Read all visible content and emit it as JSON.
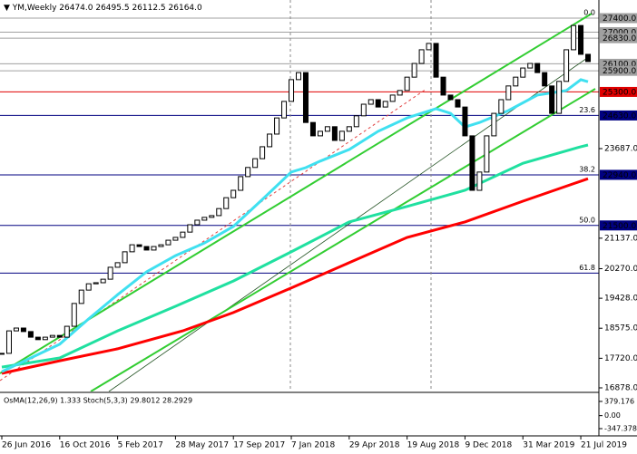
{
  "chart_data": {
    "type": "candlestick",
    "title": "YM,Weekly",
    "subtitle": "26474.0 26495.5 26112.5 26164.0",
    "values": [
      17860,
      18500,
      18580,
      18480,
      18320,
      18250,
      18320,
      18370,
      18320,
      18630,
      19280,
      19660,
      19840,
      19870,
      19970,
      20310,
      20440,
      20750,
      20950,
      20900,
      20800,
      20900,
      20950,
      21080,
      21160,
      21310,
      21520,
      21650,
      21730,
      21780,
      21980,
      22290,
      22500,
      22890,
      23150,
      23400,
      23740,
      24100,
      24560,
      25030,
      25650,
      25850,
      24430,
      24050,
      24180,
      24310,
      23920,
      24180,
      24310,
      24620,
      24950,
      25080,
      24870,
      25030,
      25210,
      25340,
      25720,
      26110,
      26500,
      26680,
      25720,
      25210,
      25080,
      24870,
      24050,
      22500,
      23020,
      24050,
      24690,
      25080,
      25470,
      25720,
      25980,
      26110,
      25850,
      25470,
      24690,
      25600,
      26500,
      27190,
      26370,
      26164
    ],
    "xlim": [
      -0.25,
      82.5
    ],
    "ylim": [
      16775,
      27916
    ],
    "xticks": [
      {
        "value": 0,
        "label": "26 Jun 2016"
      },
      {
        "value": 8,
        "label": "16 Oct 2016"
      },
      {
        "value": 16,
        "label": "5 Feb 2017"
      },
      {
        "value": 24,
        "label": "28 May 2017"
      },
      {
        "value": 32,
        "label": "17 Sep 2017"
      },
      {
        "value": 40,
        "label": "7 Jan 2018"
      },
      {
        "value": 48,
        "label": "29 Apr 2018"
      },
      {
        "value": 56,
        "label": "19 Aug 2018"
      },
      {
        "value": 64,
        "label": "9 Dec 2018"
      },
      {
        "value": 72,
        "label": "31 Mar 2019"
      },
      {
        "value": 80,
        "label": "21 Jul 2019"
      }
    ],
    "yticks": [
      {
        "value": 23687,
        "label": "23687.0"
      },
      {
        "value": 21137,
        "label": "21137.0"
      },
      {
        "value": 20270,
        "label": "20270.0"
      },
      {
        "value": 19428,
        "label": "19428.0"
      },
      {
        "value": 18575,
        "label": "18575.0"
      },
      {
        "value": 17720,
        "label": "17720.0"
      },
      {
        "value": 16878,
        "label": "16878.0"
      }
    ],
    "levels": [
      {
        "value": 27400,
        "label": "27400.0",
        "color": "#a0a0a0"
      },
      {
        "value": 27000,
        "label": "27000.0",
        "color": "#a0a0a0"
      },
      {
        "value": 26830,
        "label": "26830.0",
        "color": "#a0a0a0"
      },
      {
        "value": 26100,
        "label": "26100.0",
        "color": "#a0a0a0"
      },
      {
        "value": 25900,
        "label": "25900.0",
        "color": "#a0a0a0"
      },
      {
        "value": 25300,
        "label": "25300.0",
        "color": "#e00000"
      },
      {
        "value": 24630,
        "label": "24630.0",
        "color": "#000080"
      },
      {
        "value": 22940,
        "label": "22940.0",
        "color": "#000080"
      },
      {
        "value": 21500,
        "label": "21500.0",
        "color": "#000080"
      },
      {
        "value": 20145,
        "color": "#000080"
      }
    ],
    "fib": [
      {
        "label": "0.0",
        "price": 27400
      },
      {
        "label": "23.6",
        "price": 24630
      },
      {
        "label": "38.2",
        "price": 22940
      },
      {
        "label": "50.0",
        "price": 21500
      },
      {
        "label": "61.8",
        "price": 20145
      }
    ],
    "moving_averages": [
      {
        "color": "#ff0000",
        "x": [
          0,
          8,
          16,
          25,
          32,
          40,
          48,
          56,
          64,
          72,
          80,
          81
        ],
        "values": [
          17290,
          17650,
          17990,
          18500,
          19020,
          19720,
          20440,
          21160,
          21600,
          22190,
          22760,
          22830
        ]
      },
      {
        "color": "#20e0a0",
        "x": [
          0,
          8,
          16,
          24,
          32,
          40,
          48,
          56,
          64,
          72,
          80,
          81
        ],
        "values": [
          17470,
          17730,
          18500,
          19200,
          19920,
          20750,
          21600,
          22040,
          22500,
          23270,
          23740,
          23790
        ]
      },
      {
        "color": "#40e0f0",
        "x": [
          0,
          8,
          12,
          16,
          20,
          24,
          28,
          32,
          36,
          40,
          42,
          44,
          48,
          52,
          56,
          60,
          62,
          64,
          66,
          70,
          74,
          78,
          80,
          81
        ],
        "values": [
          17340,
          18120,
          18840,
          19530,
          20180,
          20640,
          21000,
          21470,
          22240,
          23020,
          23145,
          23330,
          23660,
          24180,
          24560,
          24820,
          24690,
          24300,
          24430,
          24770,
          25210,
          25340,
          25650,
          25590
        ]
      }
    ],
    "oscillator": {
      "title": "OsMA(12,26,9) 1.333  Stoch(5,3,3) 29.8012 28.2929",
      "ylim": [
        -541,
        548
      ],
      "yticks": [
        {
          "value": 379.176,
          "label": "379.176"
        },
        {
          "value": 0,
          "label": "0.00"
        },
        {
          "value": -347.378,
          "label": "-347.378"
        }
      ]
    }
  }
}
